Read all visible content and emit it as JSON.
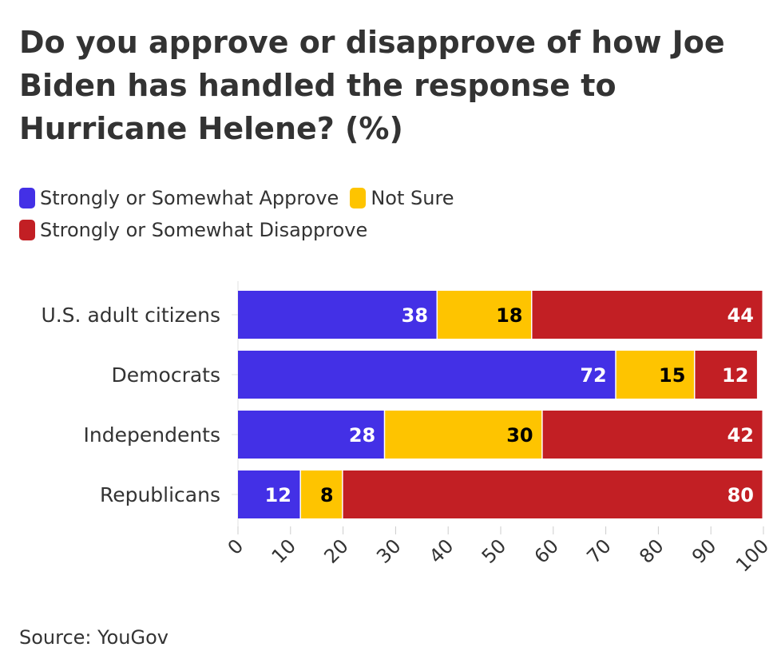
{
  "header": {
    "title": "Do you approve or disapprove of how Joe Biden has handled the response to Hurricane Helene? (%)"
  },
  "footer": {
    "source": "Source: YouGov"
  },
  "chart_data": {
    "type": "bar",
    "orientation": "horizontal",
    "stacked": true,
    "categories": [
      "U.S. adult citizens",
      "Democrats",
      "Independents",
      "Republicans"
    ],
    "series": [
      {
        "name": "Strongly or Somewhat Approve",
        "color": "#4330e6",
        "label_color": "#ffffff",
        "values": [
          38,
          72,
          28,
          12
        ]
      },
      {
        "name": "Not Sure",
        "color": "#fec400",
        "label_color": "#000000",
        "values": [
          18,
          15,
          30,
          8
        ]
      },
      {
        "name": "Strongly or Somewhat Disapprove",
        "color": "#c21f24",
        "label_color": "#ffffff",
        "values": [
          44,
          12,
          42,
          80
        ]
      }
    ],
    "xlim": [
      0,
      100
    ],
    "xticks": [
      0,
      10,
      20,
      30,
      40,
      50,
      60,
      70,
      80,
      90,
      100
    ],
    "legend_position": "top-left",
    "grid": false
  }
}
